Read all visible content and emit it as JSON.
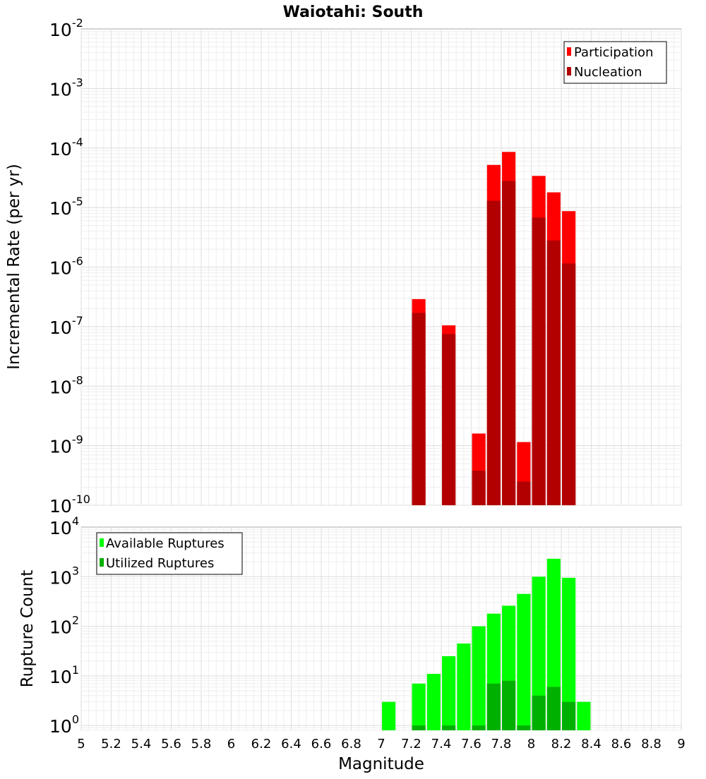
{
  "chart_data": {
    "title": "Waiotahi: South",
    "xlabel": "Magnitude",
    "xlim": [
      5,
      9
    ],
    "x_ticks": [
      "5",
      "5.2",
      "5.4",
      "5.6",
      "5.8",
      "6",
      "6.2",
      "6.4",
      "6.6",
      "6.8",
      "7",
      "7.2",
      "7.4",
      "7.6",
      "7.8",
      "8",
      "8.2",
      "8.4",
      "8.6",
      "8.8",
      "9"
    ],
    "grid": true,
    "panels": [
      {
        "type": "bar",
        "ylabel": "Incremental Rate (per yr)",
        "yscale": "log",
        "ylim": [
          1e-10,
          0.01
        ],
        "y_tick_exponents": [
          "-10",
          "-9",
          "-8",
          "-7",
          "-6",
          "-5",
          "-4",
          "-3",
          "-2"
        ],
        "y_tick_base": "10",
        "legend_position": "top-right",
        "bar_width": 0.09,
        "series": [
          {
            "name": "Participation",
            "color": "#ff0000",
            "x": [
              7.25,
              7.45,
              7.65,
              7.75,
              7.85,
              7.95,
              8.05,
              8.15,
              8.25
            ],
            "values": [
              2.9e-07,
              1.05e-07,
              1.6e-09,
              5.2e-05,
              8.6e-05,
              1.15e-09,
              3.4e-05,
              1.8e-05,
              8.7e-06
            ]
          },
          {
            "name": "Nucleation",
            "color": "#b20000",
            "x": [
              7.25,
              7.45,
              7.65,
              7.75,
              7.85,
              7.95,
              8.05,
              8.15,
              8.25
            ],
            "values": [
              1.7e-07,
              7.5e-08,
              3.8e-10,
              1.3e-05,
              2.8e-05,
              2.5e-10,
              6.8e-06,
              2.8e-06,
              1.15e-06
            ]
          }
        ]
      },
      {
        "type": "bar",
        "ylabel": "Rupture Count",
        "yscale": "log",
        "ylim": [
          0.8,
          10000
        ],
        "y_tick_exponents": [
          "0",
          "1",
          "2",
          "3",
          "4"
        ],
        "y_tick_base": "10",
        "legend_position": "top-left",
        "bar_width": 0.09,
        "series": [
          {
            "name": "Available Ruptures",
            "color": "#00ff00",
            "x": [
              7.05,
              7.25,
              7.35,
              7.45,
              7.55,
              7.65,
              7.75,
              7.85,
              7.95,
              8.05,
              8.15,
              8.25,
              8.35
            ],
            "values": [
              3,
              7,
              11,
              25,
              45,
              100,
              180,
              260,
              450,
              1000,
              2300,
              950,
              3
            ]
          },
          {
            "name": "Utilized Ruptures",
            "color": "#00b000",
            "x": [
              7.25,
              7.45,
              7.65,
              7.75,
              7.85,
              7.95,
              8.05,
              8.15,
              8.25
            ],
            "values": [
              1,
              1,
              1,
              7,
              8,
              1,
              4,
              6,
              3
            ]
          }
        ]
      }
    ]
  }
}
